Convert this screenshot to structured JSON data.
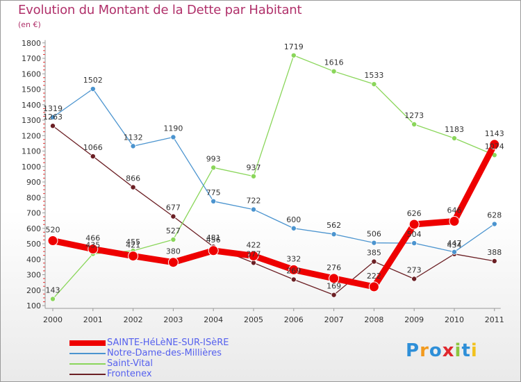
{
  "title": "Evolution du Montant de la Dette par Habitant",
  "subtitle": "(en €)",
  "logo": {
    "text": "Proxiti",
    "colors": [
      "#2e8fd8",
      "#f29a1e",
      "#2e8fd8",
      "#e0282e",
      "#8dc63f",
      "#2e8fd8",
      "#f2c21e"
    ]
  },
  "chart_data": {
    "type": "line",
    "title": "Evolution du Montant de la Dette par Habitant",
    "subtitle": "(en €)",
    "x": [
      "2000",
      "2001",
      "2002",
      "2003",
      "2004",
      "2005",
      "2006",
      "2007",
      "2008",
      "2009",
      "2010",
      "2011"
    ],
    "ylim": [
      100,
      1800
    ],
    "yticks": [
      100,
      200,
      300,
      400,
      500,
      600,
      700,
      800,
      900,
      1000,
      1100,
      1200,
      1300,
      1400,
      1500,
      1600,
      1700,
      1800
    ],
    "grid": false,
    "legend_position": "bottom-left",
    "series": [
      {
        "name": "SAINTE-HéLèNE-SUR-ISèRE",
        "color": "#ee0000",
        "values": [
          520,
          466,
          421,
          380,
          456,
          422,
          332,
          276,
          222,
          626,
          646,
          1143
        ],
        "labels": [
          "520",
          "466",
          "421",
          "380",
          "456",
          "422",
          "332",
          "276",
          "222",
          "626",
          "646",
          "1143"
        ]
      },
      {
        "name": "Notre-Dame-des-Millières",
        "color": "#4b94cf",
        "values": [
          1319,
          1502,
          1132,
          1190,
          775,
          722,
          600,
          562,
          506,
          504,
          447,
          628
        ],
        "labels": [
          "1319",
          "1502",
          "1132",
          "1190",
          "775",
          "722",
          "600",
          "562",
          "506",
          "504",
          "447",
          "628"
        ]
      },
      {
        "name": "Saint-Vital",
        "color": "#8ad65a",
        "values": [
          143,
          435,
          455,
          527,
          993,
          937,
          1719,
          1616,
          1533,
          1273,
          1183,
          1074
        ],
        "labels": [
          "143",
          "435",
          "455",
          "527",
          "993",
          "937",
          "1719",
          "1616",
          "1533",
          "1273",
          "1183",
          "1074"
        ]
      },
      {
        "name": "Frontenex",
        "color": "#6b1f24",
        "values": [
          1263,
          1066,
          866,
          677,
          481,
          377,
          269,
          169,
          385,
          273,
          434,
          388
        ],
        "labels": [
          "1263",
          "1066",
          "866",
          "677",
          "481",
          "377",
          "269",
          "169",
          "385",
          "273",
          "434",
          "388"
        ]
      }
    ]
  }
}
